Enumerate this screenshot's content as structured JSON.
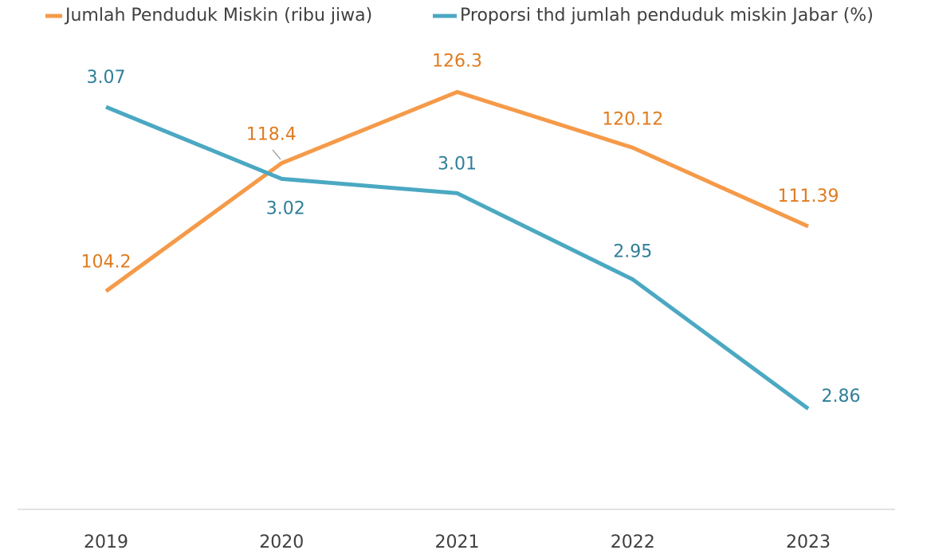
{
  "chart_data": {
    "type": "line",
    "categories": [
      "2019",
      "2020",
      "2021",
      "2022",
      "2023"
    ],
    "series": [
      {
        "name": "Jumlah Penduduk Miskin (ribu jiwa)",
        "color": "#f59a49",
        "values": [
          104.2,
          118.4,
          126.3,
          120.12,
          111.39
        ]
      },
      {
        "name": "Proporsi thd jumlah penduduk miskin Jabar (%)",
        "color": "#4ba8c2",
        "axis": "y2",
        "values": [
          3.07,
          3.02,
          3.01,
          2.95,
          2.86
        ]
      }
    ],
    "ylim": [
      80,
      135
    ],
    "y2lim": [
      2.79,
      3.135
    ],
    "legend": "top"
  }
}
